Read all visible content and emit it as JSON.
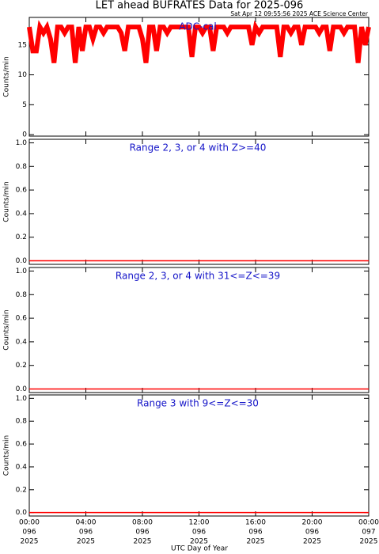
{
  "title": "LET ahead BUFRATES Data for 2025-096",
  "subtitle": "Sat Apr 12 09:55:56 2025 ACE Science Center",
  "xlabel": "UTC Day of Year",
  "xlim": [
    0,
    24
  ],
  "xticks": [
    {
      "value": 0,
      "label": [
        "00:00",
        "096",
        "2025"
      ]
    },
    {
      "value": 4,
      "label": [
        "04:00",
        "096",
        "2025"
      ]
    },
    {
      "value": 8,
      "label": [
        "08:00",
        "096",
        "2025"
      ]
    },
    {
      "value": 12,
      "label": [
        "12:00",
        "096",
        "2025"
      ]
    },
    {
      "value": 16,
      "label": [
        "16:00",
        "096",
        "2025"
      ]
    },
    {
      "value": 20,
      "label": [
        "20:00",
        "096",
        "2025"
      ]
    },
    {
      "value": 24,
      "label": [
        "00:00",
        "097",
        "2025"
      ]
    }
  ],
  "chart_data": [
    {
      "type": "line",
      "annotation": "ADC-cal",
      "ylabel": "Counts/min",
      "color": "#ff0000",
      "ylim": [
        -0.25,
        19.6
      ],
      "yticks": [
        0,
        5,
        10,
        15
      ],
      "x": [
        0,
        0.25,
        0.5,
        0.75,
        1,
        1.25,
        1.5,
        1.75,
        2,
        2.25,
        2.5,
        2.75,
        3,
        3.25,
        3.5,
        3.75,
        4,
        4.25,
        4.5,
        4.75,
        5,
        5.25,
        5.5,
        5.75,
        6,
        6.25,
        6.5,
        6.75,
        7,
        7.25,
        7.5,
        7.75,
        8,
        8.25,
        8.5,
        8.75,
        9,
        9.25,
        9.5,
        9.75,
        10,
        10.25,
        10.5,
        10.75,
        11,
        11.25,
        11.5,
        11.75,
        12,
        12.25,
        12.5,
        12.75,
        13,
        13.25,
        13.5,
        13.75,
        14,
        14.25,
        14.5,
        14.75,
        15,
        15.25,
        15.5,
        15.75,
        16,
        16.25,
        16.5,
        16.75,
        17,
        17.25,
        17.5,
        17.75,
        18,
        18.25,
        18.5,
        18.75,
        19,
        19.25,
        19.5,
        19.75,
        20,
        20.25,
        20.5,
        20.75,
        21,
        21.25,
        21.5,
        21.75,
        22,
        22.25,
        22.5,
        22.75,
        23,
        23.25,
        23.5,
        23.75,
        24
      ],
      "values": [
        18,
        14,
        14,
        18,
        17,
        18,
        16,
        12,
        18,
        18,
        17,
        18,
        18,
        12,
        18,
        14,
        18,
        18,
        16,
        18,
        18,
        17,
        18,
        18,
        18,
        18,
        17,
        14,
        18,
        18,
        18,
        18,
        16,
        12,
        18,
        18,
        14,
        18,
        18,
        17,
        18,
        18,
        18,
        18,
        18,
        18,
        13,
        18,
        18,
        17,
        18,
        18,
        14,
        18,
        18,
        18,
        17,
        18,
        18,
        18,
        18,
        18,
        18,
        15,
        18,
        17,
        18,
        18,
        18,
        18,
        18,
        13,
        18,
        18,
        17,
        18,
        18,
        15,
        18,
        18,
        18,
        18,
        17,
        18,
        18,
        14,
        18,
        18,
        18,
        17,
        18,
        18,
        18,
        12,
        18,
        15,
        18
      ]
    },
    {
      "type": "line",
      "annotation": "Range 2, 3, or 4 with Z>=40",
      "ylabel": "Counts/min",
      "color": "#ff0000",
      "ylim": [
        -0.03,
        1.03
      ],
      "yticks": [
        {
          "value": 0,
          "label": "0.0"
        },
        {
          "value": 0.2,
          "label": "0.2"
        },
        {
          "value": 0.4,
          "label": "0.4"
        },
        {
          "value": 0.6,
          "label": "0.6"
        },
        {
          "value": 0.8,
          "label": "0.8"
        },
        {
          "value": 1,
          "label": "1.0"
        }
      ],
      "x": [
        0,
        24
      ],
      "values": [
        0,
        0
      ]
    },
    {
      "type": "line",
      "annotation": "Range 2, 3, or 4 with 31<=Z<=39",
      "ylabel": "Counts/min",
      "color": "#ff0000",
      "ylim": [
        -0.03,
        1.03
      ],
      "yticks": [
        {
          "value": 0,
          "label": "0.0"
        },
        {
          "value": 0.2,
          "label": "0.2"
        },
        {
          "value": 0.4,
          "label": "0.4"
        },
        {
          "value": 0.6,
          "label": "0.6"
        },
        {
          "value": 0.8,
          "label": "0.8"
        },
        {
          "value": 1,
          "label": "1.0"
        }
      ],
      "x": [
        0,
        24
      ],
      "values": [
        0,
        0
      ]
    },
    {
      "type": "line",
      "annotation": "Range 3 with 9<=Z<=30",
      "ylabel": "Counts/min",
      "color": "#ff0000",
      "ylim": [
        -0.03,
        1.03
      ],
      "yticks": [
        {
          "value": 0,
          "label": "0.0"
        },
        {
          "value": 0.2,
          "label": "0.2"
        },
        {
          "value": 0.4,
          "label": "0.4"
        },
        {
          "value": 0.6,
          "label": "0.6"
        },
        {
          "value": 0.8,
          "label": "0.8"
        },
        {
          "value": 1,
          "label": "1.0"
        }
      ],
      "x": [
        0,
        24
      ],
      "values": [
        0,
        0
      ]
    }
  ]
}
